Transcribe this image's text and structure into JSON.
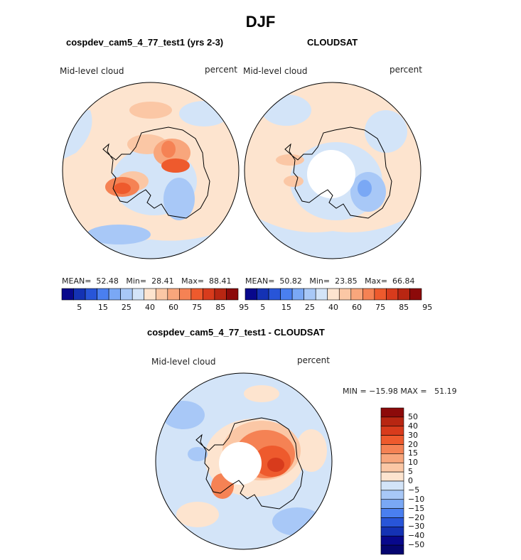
{
  "title": "DJF",
  "panels": [
    {
      "heading": "cospdev_cam5_4_77_test1 (yrs 2-3)",
      "variable": "Mid-level cloud",
      "units": "percent",
      "stats": "MEAN=  52.48   Min=  28.41   Max=  88.41"
    },
    {
      "heading": "CLOUDSAT",
      "variable": "Mid-level cloud",
      "units": "percent",
      "stats": "MEAN=  50.82   Min=  23.85   Max=  66.84"
    }
  ],
  "diff": {
    "heading": "cospdev_cam5_4_77_test1 - CLOUDSAT",
    "variable": "Mid-level cloud",
    "units": "percent",
    "stats": "MIN = −15.98 MAX =   51.19"
  },
  "colorbar_abs": {
    "labels": [
      "5",
      "15",
      "25",
      "40",
      "60",
      "75",
      "85",
      "95"
    ],
    "colors": [
      "#08088c",
      "#1432b4",
      "#2855d8",
      "#4a7ff0",
      "#7aa8f5",
      "#a8c8f7",
      "#d3e4f8",
      "#fde4cf",
      "#fbc7a5",
      "#f8a67c",
      "#f58254",
      "#ee5a2d",
      "#d83b1c",
      "#b82612",
      "#8c0a0a"
    ]
  },
  "colorbar_diff": {
    "labels": [
      "50",
      "40",
      "30",
      "20",
      "15",
      "10",
      "5",
      "0",
      "−5",
      "−10",
      "−15",
      "−20",
      "−30",
      "−40",
      "−50"
    ],
    "colors": [
      "#8c0a0a",
      "#b82612",
      "#d83b1c",
      "#ee5a2d",
      "#f58254",
      "#f8a67c",
      "#fbc7a5",
      "#fde4cf",
      "#d3e4f8",
      "#a8c8f7",
      "#7aa8f5",
      "#4a7ff0",
      "#2855d8",
      "#1432b4",
      "#08088c",
      "#050570"
    ]
  }
}
